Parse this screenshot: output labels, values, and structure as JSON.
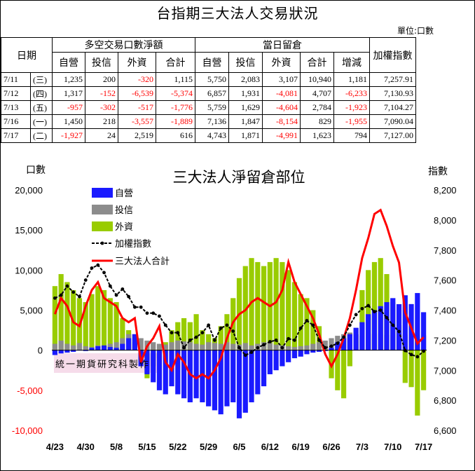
{
  "title": "台指期三大法人交易狀況",
  "unit_label": "單位:口數",
  "table": {
    "date_header": "日期",
    "group1_header": "多空交易口數淨額",
    "group2_header": "當日留倉",
    "index_header": "加權指數",
    "sub_headers_group1": [
      "自營",
      "投信",
      "外資",
      "合計"
    ],
    "sub_headers_group2": [
      "自營",
      "投信",
      "外資",
      "合計",
      "增減"
    ],
    "rows": [
      {
        "date": "7/11",
        "weekday": "(三)",
        "net": [
          "1,235",
          "200",
          "-320",
          "1,115"
        ],
        "oi": [
          "5,750",
          "2,083",
          "3,107",
          "10,940",
          "1,181"
        ],
        "index": "7,257.91"
      },
      {
        "date": "7/12",
        "weekday": "(四)",
        "net": [
          "1,317",
          "-152",
          "-6,539",
          "-5,374"
        ],
        "oi": [
          "6,857",
          "1,931",
          "-4,081",
          "4,707",
          "-6,233"
        ],
        "index": "7,130.93"
      },
      {
        "date": "7/13",
        "weekday": "(五)",
        "net": [
          "-957",
          "-302",
          "-517",
          "-1,776"
        ],
        "oi": [
          "5,759",
          "1,629",
          "-4,604",
          "2,784",
          "-1,923"
        ],
        "index": "7,104.27"
      },
      {
        "date": "7/16",
        "weekday": "(一)",
        "net": [
          "1,450",
          "218",
          "-3,557",
          "-1,889"
        ],
        "oi": [
          "7,136",
          "1,847",
          "-8,154",
          "829",
          "-1,955"
        ],
        "index": "7,090.04"
      },
      {
        "date": "7/17",
        "weekday": "(二)",
        "net": [
          "-1,927",
          "24",
          "2,519",
          "616"
        ],
        "oi": [
          "4,743",
          "1,871",
          "-4,991",
          "1,623",
          "794"
        ],
        "index": "7,127.00"
      }
    ]
  },
  "watermark": "統一期貨研究科製作",
  "chart_data": {
    "type": "bar",
    "title": "三大法人淨留倉部位",
    "y_left_label": "口數",
    "y_right_label": "指數",
    "y_left_range": [
      -10000,
      20000
    ],
    "y_left_ticks": [
      "20,000",
      "15,000",
      "10,000",
      "5,000",
      "0",
      "-5,000",
      "-10,000"
    ],
    "y_right_range": [
      6600,
      8200
    ],
    "y_right_ticks": [
      "8,200",
      "8,000",
      "7,800",
      "7,600",
      "7,400",
      "7,200",
      "7,000",
      "6,800",
      "6,600"
    ],
    "x_tick_labels": [
      "4/23",
      "4/30",
      "5/8",
      "5/15",
      "5/22",
      "5/29",
      "6/5",
      "6/12",
      "6/19",
      "6/26",
      "7/3",
      "7/10",
      "7/17"
    ],
    "x_tick_indices": [
      0,
      5,
      10,
      15,
      20,
      25,
      30,
      35,
      40,
      45,
      50,
      55,
      60
    ],
    "legend": [
      "自營",
      "投信",
      "外資",
      "加權指數",
      "三大法人合計"
    ],
    "legend_position": "top-left",
    "colors": {
      "dealer": "#1a1aff",
      "trust": "#8c8c8c",
      "foreign": "#99cc00",
      "index": "#000000",
      "total": "#ff0000",
      "negative_text": "#ff0000"
    },
    "series": [
      {
        "name": "自營",
        "values": [
          -600,
          -400,
          -300,
          -200,
          0,
          -100,
          300,
          500,
          600,
          400,
          300,
          800,
          1500,
          2000,
          -2000,
          -3000,
          -4000,
          -5000,
          -5500,
          -4500,
          -5500,
          -6000,
          -6500,
          -6000,
          -6500,
          -7000,
          -7500,
          -8000,
          -7000,
          -6500,
          -8500,
          -7800,
          -6500,
          -5500,
          -4500,
          -3000,
          -2500,
          -2000,
          -1500,
          -1000,
          -800,
          -500,
          -300,
          -200,
          -100,
          300,
          1000,
          1500,
          2000,
          2800,
          3500,
          4500,
          5000,
          5500,
          6000,
          6500,
          5750,
          6857,
          5759,
          7136,
          4743
        ]
      },
      {
        "name": "投信",
        "values": [
          800,
          1200,
          800,
          600,
          900,
          500,
          400,
          600,
          500,
          800,
          1000,
          1500,
          2000,
          2000,
          1500,
          1200,
          1000,
          800,
          700,
          1000,
          1200,
          1100,
          1000,
          800,
          700,
          1000,
          900,
          800,
          1000,
          800,
          700,
          900,
          600,
          800,
          1000,
          900,
          700,
          600,
          500,
          400,
          500,
          600,
          800,
          1000,
          1200,
          1500,
          1800,
          2000,
          2200,
          2000,
          1800,
          2100,
          2000,
          2083,
          1900,
          1950,
          2083,
          1931,
          1629,
          1847,
          1871
        ]
      },
      {
        "name": "外資",
        "values": [
          8000,
          9500,
          8500,
          7500,
          6500,
          6000,
          7000,
          8000,
          7500,
          6500,
          6000,
          4000,
          2500,
          1000,
          -1500,
          -3500,
          -2000,
          -1000,
          1000,
          2500,
          3500,
          4000,
          3500,
          4500,
          2500,
          2000,
          1500,
          3000,
          4500,
          6500,
          9000,
          10500,
          11500,
          11000,
          10500,
          11000,
          11500,
          11000,
          10000,
          8500,
          7000,
          6500,
          5000,
          3000,
          500,
          -3500,
          -5000,
          -6000,
          -2000,
          2000,
          7500,
          10000,
          11000,
          11500,
          9500,
          6000,
          3107,
          -4081,
          -4604,
          -8154,
          -4991
        ]
      },
      {
        "name": "加權指數",
        "values": [
          7480,
          7500,
          7560,
          7520,
          7490,
          7600,
          7680,
          7700,
          7650,
          7560,
          7500,
          7540,
          7490,
          7420,
          7420,
          7380,
          7380,
          7360,
          7300,
          7250,
          7250,
          7150,
          7200,
          7220,
          7250,
          7300,
          7200,
          7280,
          7300,
          7260,
          7150,
          7100,
          7120,
          7150,
          7170,
          7190,
          7200,
          7150,
          7210,
          7200,
          7280,
          7330,
          7300,
          7200,
          7150,
          7160,
          7180,
          7220,
          7300,
          7370,
          7410,
          7430,
          7390,
          7400,
          7350,
          7300,
          7257.91,
          7130.93,
          7104.27,
          7090.04,
          7127.0
        ]
      },
      {
        "name": "三大法人合計",
        "values": [
          4500,
          6500,
          5500,
          3500,
          3000,
          5500,
          7500,
          8500,
          6500,
          6000,
          5500,
          4000,
          3500,
          4000,
          -1500,
          500,
          1500,
          3000,
          -1500,
          -2500,
          -500,
          -1500,
          -3000,
          -3500,
          -3000,
          -3500,
          -2500,
          -1000,
          1500,
          3500,
          4500,
          5000,
          6000,
          6500,
          6000,
          5500,
          6000,
          7500,
          11000,
          8500,
          7000,
          5500,
          4000,
          2000,
          -500,
          -2000,
          -500,
          1500,
          4000,
          7500,
          11500,
          14000,
          17000,
          17500,
          15500,
          13000,
          10940,
          4707,
          2784,
          829,
          1623
        ]
      }
    ]
  }
}
